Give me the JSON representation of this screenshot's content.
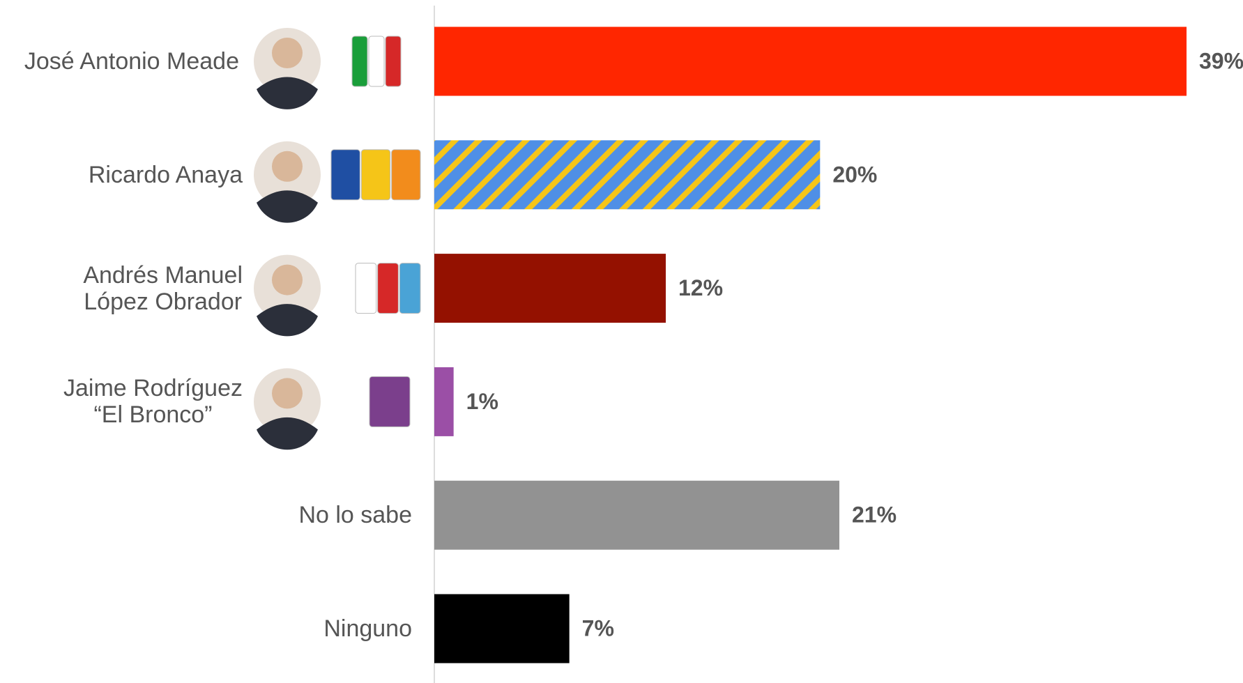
{
  "chart_data": {
    "type": "hbar",
    "categories": [
      "José Antonio Meade",
      "Ricardo Anaya",
      "Andrés Manuel\nLópez Obrador",
      "Jaime Rodríguez\n“El Bronco”",
      "No lo sabe",
      "Ninguno"
    ],
    "values": [
      39,
      20,
      12,
      1,
      21,
      7
    ],
    "value_labels": [
      "39%",
      "20%",
      "12%",
      "1%",
      "21%",
      "7%"
    ],
    "colors": [
      "#ff2600",
      "#4f8fe6",
      "#941100",
      "#9b4fa6",
      "#929292",
      "#000000"
    ],
    "hatch_colors": [
      null,
      "#f5c518",
      null,
      null,
      null,
      null
    ]
  }
}
